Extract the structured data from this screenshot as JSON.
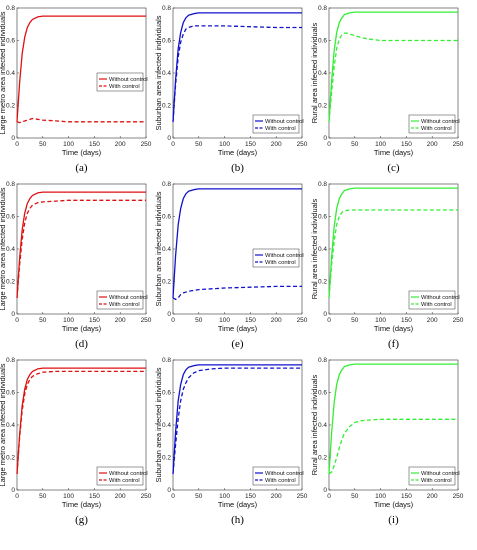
{
  "chart_data": [
    {
      "type": "line",
      "panel_label": "(a)",
      "xlabel": "Time (days)",
      "ylabel": "Large metro area infected individuals",
      "xlim": [
        0,
        250
      ],
      "ylim": [
        0,
        0.8
      ],
      "xticks": [
        0,
        50,
        100,
        150,
        200,
        250
      ],
      "yticks": [
        0,
        0.2,
        0.4,
        0.6,
        0.8
      ],
      "color": "#dd1111",
      "legend_position": "right-middle",
      "series": [
        {
          "name": "Without control",
          "style": "solid",
          "x": [
            0,
            5,
            10,
            15,
            20,
            25,
            30,
            40,
            50,
            75,
            100,
            150,
            200,
            250
          ],
          "y": [
            0.1,
            0.34,
            0.52,
            0.62,
            0.68,
            0.71,
            0.73,
            0.745,
            0.75,
            0.75,
            0.75,
            0.75,
            0.75,
            0.75
          ]
        },
        {
          "name": "With control",
          "style": "dashed",
          "x": [
            0,
            5,
            10,
            20,
            30,
            40,
            50,
            75,
            100,
            150,
            200,
            250
          ],
          "y": [
            0.1,
            0.095,
            0.1,
            0.11,
            0.12,
            0.115,
            0.11,
            0.105,
            0.1,
            0.1,
            0.1,
            0.1
          ]
        }
      ]
    },
    {
      "type": "line",
      "panel_label": "(b)",
      "xlabel": "Time (days)",
      "ylabel": "Suburban area infected individuals",
      "xlim": [
        0,
        250
      ],
      "ylim": [
        0,
        0.8
      ],
      "xticks": [
        0,
        50,
        100,
        150,
        200,
        250
      ],
      "yticks": [
        0,
        0.2,
        0.4,
        0.6,
        0.8
      ],
      "color": "#1111cc",
      "legend_position": "bottom-right",
      "series": [
        {
          "name": "Without control",
          "style": "solid",
          "x": [
            0,
            5,
            10,
            15,
            20,
            25,
            30,
            40,
            50,
            75,
            100,
            150,
            200,
            250
          ],
          "y": [
            0.1,
            0.36,
            0.55,
            0.65,
            0.71,
            0.74,
            0.755,
            0.765,
            0.77,
            0.77,
            0.77,
            0.77,
            0.77,
            0.77
          ]
        },
        {
          "name": "With control",
          "style": "dashed",
          "x": [
            0,
            5,
            10,
            15,
            20,
            25,
            30,
            40,
            50,
            75,
            100,
            150,
            200,
            250
          ],
          "y": [
            0.1,
            0.33,
            0.5,
            0.59,
            0.64,
            0.67,
            0.68,
            0.69,
            0.69,
            0.69,
            0.69,
            0.685,
            0.68,
            0.68
          ]
        }
      ]
    },
    {
      "type": "line",
      "panel_label": "(c)",
      "xlabel": "Time (days)",
      "ylabel": "Rural area infected individuals",
      "xlim": [
        0,
        250
      ],
      "ylim": [
        0,
        0.8
      ],
      "xticks": [
        0,
        50,
        100,
        150,
        200,
        250
      ],
      "yticks": [
        0,
        0.2,
        0.4,
        0.6,
        0.8
      ],
      "color": "#33ee33",
      "legend_position": "bottom-right",
      "series": [
        {
          "name": "Without control",
          "style": "solid",
          "x": [
            0,
            5,
            10,
            15,
            20,
            25,
            30,
            40,
            50,
            75,
            100,
            150,
            200,
            250
          ],
          "y": [
            0.1,
            0.35,
            0.54,
            0.65,
            0.71,
            0.74,
            0.76,
            0.77,
            0.775,
            0.775,
            0.775,
            0.775,
            0.775,
            0.775
          ]
        },
        {
          "name": "With control",
          "style": "dashed",
          "x": [
            0,
            5,
            10,
            15,
            20,
            25,
            30,
            35,
            40,
            50,
            60,
            75,
            100,
            150,
            200,
            250
          ],
          "y": [
            0.1,
            0.28,
            0.44,
            0.55,
            0.61,
            0.635,
            0.645,
            0.645,
            0.64,
            0.63,
            0.62,
            0.61,
            0.6,
            0.6,
            0.6,
            0.6
          ]
        }
      ]
    },
    {
      "type": "line",
      "panel_label": "(d)",
      "xlabel": "Time (days)",
      "ylabel": "Large metro area infected individuals",
      "xlim": [
        0,
        250
      ],
      "ylim": [
        0,
        0.8
      ],
      "xticks": [
        0,
        50,
        100,
        150,
        200,
        250
      ],
      "yticks": [
        0,
        0.2,
        0.4,
        0.6,
        0.8
      ],
      "color": "#dd1111",
      "legend_position": "bottom-right",
      "series": [
        {
          "name": "Without control",
          "style": "solid",
          "x": [
            0,
            5,
            10,
            15,
            20,
            25,
            30,
            40,
            50,
            75,
            100,
            150,
            200,
            250
          ],
          "y": [
            0.1,
            0.34,
            0.52,
            0.62,
            0.68,
            0.71,
            0.73,
            0.745,
            0.75,
            0.75,
            0.75,
            0.75,
            0.75,
            0.75
          ]
        },
        {
          "name": "With control",
          "style": "dashed",
          "x": [
            0,
            5,
            10,
            15,
            20,
            25,
            30,
            40,
            50,
            75,
            100,
            150,
            200,
            250
          ],
          "y": [
            0.1,
            0.3,
            0.46,
            0.56,
            0.62,
            0.65,
            0.67,
            0.685,
            0.69,
            0.695,
            0.7,
            0.7,
            0.7,
            0.7
          ]
        }
      ]
    },
    {
      "type": "line",
      "panel_label": "(e)",
      "xlabel": "Time (days)",
      "ylabel": "Suburban area infected individuals",
      "xlim": [
        0,
        250
      ],
      "ylim": [
        0,
        0.8
      ],
      "xticks": [
        0,
        50,
        100,
        150,
        200,
        250
      ],
      "yticks": [
        0,
        0.2,
        0.4,
        0.6,
        0.8
      ],
      "color": "#1111cc",
      "legend_position": "right-middle",
      "series": [
        {
          "name": "Without control",
          "style": "solid",
          "x": [
            0,
            5,
            10,
            15,
            20,
            25,
            30,
            40,
            50,
            75,
            100,
            150,
            200,
            250
          ],
          "y": [
            0.1,
            0.36,
            0.55,
            0.65,
            0.71,
            0.74,
            0.755,
            0.765,
            0.77,
            0.77,
            0.77,
            0.77,
            0.77,
            0.77
          ]
        },
        {
          "name": "With control",
          "style": "dashed",
          "x": [
            0,
            5,
            10,
            15,
            20,
            30,
            40,
            50,
            75,
            100,
            150,
            200,
            250
          ],
          "y": [
            0.1,
            0.09,
            0.1,
            0.12,
            0.13,
            0.14,
            0.145,
            0.15,
            0.155,
            0.16,
            0.165,
            0.17,
            0.17
          ]
        }
      ]
    },
    {
      "type": "line",
      "panel_label": "(f)",
      "xlabel": "Time (days)",
      "ylabel": "Rural area infected individuals",
      "xlim": [
        0,
        250
      ],
      "ylim": [
        0,
        0.8
      ],
      "xticks": [
        0,
        50,
        100,
        150,
        200,
        250
      ],
      "yticks": [
        0,
        0.2,
        0.4,
        0.6,
        0.8
      ],
      "color": "#33ee33",
      "legend_position": "bottom-right",
      "series": [
        {
          "name": "Without control",
          "style": "solid",
          "x": [
            0,
            5,
            10,
            15,
            20,
            25,
            30,
            40,
            50,
            75,
            100,
            150,
            200,
            250
          ],
          "y": [
            0.1,
            0.35,
            0.54,
            0.65,
            0.71,
            0.74,
            0.76,
            0.77,
            0.775,
            0.775,
            0.775,
            0.775,
            0.775,
            0.775
          ]
        },
        {
          "name": "With control",
          "style": "dashed",
          "x": [
            0,
            5,
            10,
            15,
            20,
            25,
            30,
            40,
            50,
            75,
            100,
            150,
            200,
            250
          ],
          "y": [
            0.1,
            0.3,
            0.45,
            0.55,
            0.6,
            0.625,
            0.635,
            0.64,
            0.64,
            0.64,
            0.64,
            0.64,
            0.64,
            0.64
          ]
        }
      ]
    },
    {
      "type": "line",
      "panel_label": "(g)",
      "xlabel": "Time (days)",
      "ylabel": "Large metro area infected individuals",
      "xlim": [
        0,
        250
      ],
      "ylim": [
        0,
        0.8
      ],
      "xticks": [
        0,
        50,
        100,
        150,
        200,
        250
      ],
      "yticks": [
        0,
        0.2,
        0.4,
        0.6,
        0.8
      ],
      "color": "#dd1111",
      "legend_position": "bottom-right",
      "series": [
        {
          "name": "Without control",
          "style": "solid",
          "x": [
            0,
            5,
            10,
            15,
            20,
            25,
            30,
            40,
            50,
            75,
            100,
            150,
            200,
            250
          ],
          "y": [
            0.1,
            0.34,
            0.52,
            0.62,
            0.68,
            0.71,
            0.73,
            0.745,
            0.75,
            0.75,
            0.75,
            0.75,
            0.75,
            0.75
          ]
        },
        {
          "name": "With control",
          "style": "dashed",
          "x": [
            0,
            5,
            10,
            15,
            20,
            25,
            30,
            40,
            50,
            75,
            100,
            150,
            200,
            250
          ],
          "y": [
            0.1,
            0.32,
            0.49,
            0.59,
            0.65,
            0.68,
            0.7,
            0.715,
            0.725,
            0.73,
            0.73,
            0.73,
            0.73,
            0.73
          ]
        }
      ]
    },
    {
      "type": "line",
      "panel_label": "(h)",
      "xlabel": "Time (days)",
      "ylabel": "Suburban area infected individuals",
      "xlim": [
        0,
        250
      ],
      "ylim": [
        0,
        0.8
      ],
      "xticks": [
        0,
        50,
        100,
        150,
        200,
        250
      ],
      "yticks": [
        0,
        0.2,
        0.4,
        0.6,
        0.8
      ],
      "color": "#1111cc",
      "legend_position": "bottom-right",
      "series": [
        {
          "name": "Without control",
          "style": "solid",
          "x": [
            0,
            5,
            10,
            15,
            20,
            25,
            30,
            40,
            50,
            75,
            100,
            150,
            200,
            250
          ],
          "y": [
            0.1,
            0.36,
            0.55,
            0.65,
            0.71,
            0.74,
            0.755,
            0.765,
            0.77,
            0.77,
            0.77,
            0.77,
            0.77,
            0.77
          ]
        },
        {
          "name": "With control",
          "style": "dashed",
          "x": [
            0,
            5,
            10,
            15,
            20,
            25,
            30,
            40,
            50,
            75,
            100,
            150,
            200,
            250
          ],
          "y": [
            0.1,
            0.28,
            0.44,
            0.55,
            0.62,
            0.66,
            0.69,
            0.72,
            0.735,
            0.745,
            0.75,
            0.75,
            0.75,
            0.75
          ]
        }
      ]
    },
    {
      "type": "line",
      "panel_label": "(i)",
      "xlabel": "Time (days)",
      "ylabel": "Rural area infected individuals",
      "xlim": [
        0,
        250
      ],
      "ylim": [
        0,
        0.8
      ],
      "xticks": [
        0,
        50,
        100,
        150,
        200,
        250
      ],
      "yticks": [
        0,
        0.2,
        0.4,
        0.6,
        0.8
      ],
      "color": "#33ee33",
      "legend_position": "bottom-right",
      "series": [
        {
          "name": "Without control",
          "style": "solid",
          "x": [
            0,
            5,
            10,
            15,
            20,
            25,
            30,
            40,
            50,
            75,
            100,
            150,
            200,
            250
          ],
          "y": [
            0.1,
            0.35,
            0.54,
            0.65,
            0.71,
            0.74,
            0.76,
            0.77,
            0.775,
            0.775,
            0.775,
            0.775,
            0.775,
            0.775
          ]
        },
        {
          "name": "With control",
          "style": "dashed",
          "x": [
            0,
            5,
            10,
            15,
            20,
            25,
            30,
            40,
            50,
            60,
            75,
            100,
            150,
            200,
            250
          ],
          "y": [
            0.1,
            0.11,
            0.15,
            0.2,
            0.26,
            0.31,
            0.35,
            0.39,
            0.415,
            0.425,
            0.43,
            0.435,
            0.435,
            0.435,
            0.435
          ]
        }
      ]
    }
  ]
}
